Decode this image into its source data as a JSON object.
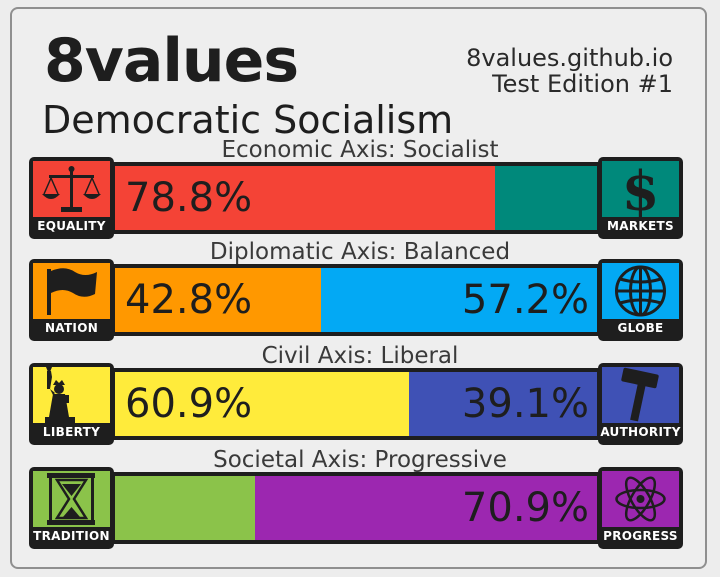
{
  "header": {
    "brand": "8values",
    "ideology": "Democratic Socialism",
    "site": "8values.github.io",
    "edition": "Test Edition #1"
  },
  "axes": [
    {
      "title": "Economic Axis: Socialist",
      "left": {
        "label": "EQUALITY",
        "icon": "scales-icon",
        "color": "#f44336",
        "value": 78.8,
        "text": "78.8%"
      },
      "right": {
        "label": "MARKETS",
        "icon": "dollar-icon",
        "color": "#00897b",
        "value": 21.2,
        "text": ""
      }
    },
    {
      "title": "Diplomatic Axis: Balanced",
      "left": {
        "label": "NATION",
        "icon": "flag-icon",
        "color": "#ff9800",
        "value": 42.8,
        "text": "42.8%"
      },
      "right": {
        "label": "GLOBE",
        "icon": "globe-icon",
        "color": "#03a9f4",
        "value": 57.2,
        "text": "57.2%"
      }
    },
    {
      "title": "Civil Axis: Liberal",
      "left": {
        "label": "LIBERTY",
        "icon": "statue-of-liberty-icon",
        "color": "#ffeb3b",
        "value": 60.9,
        "text": "60.9%"
      },
      "right": {
        "label": "AUTHORITY",
        "icon": "gavel-icon",
        "color": "#3f51b5",
        "value": 39.1,
        "text": "39.1%"
      }
    },
    {
      "title": "Societal Axis: Progressive",
      "left": {
        "label": "TRADITION",
        "icon": "hourglass-icon",
        "color": "#8bc34a",
        "value": 29.1,
        "text": ""
      },
      "right": {
        "label": "PROGRESS",
        "icon": "atom-icon",
        "color": "#9c27b0",
        "value": 70.9,
        "text": "70.9%"
      }
    }
  ]
}
